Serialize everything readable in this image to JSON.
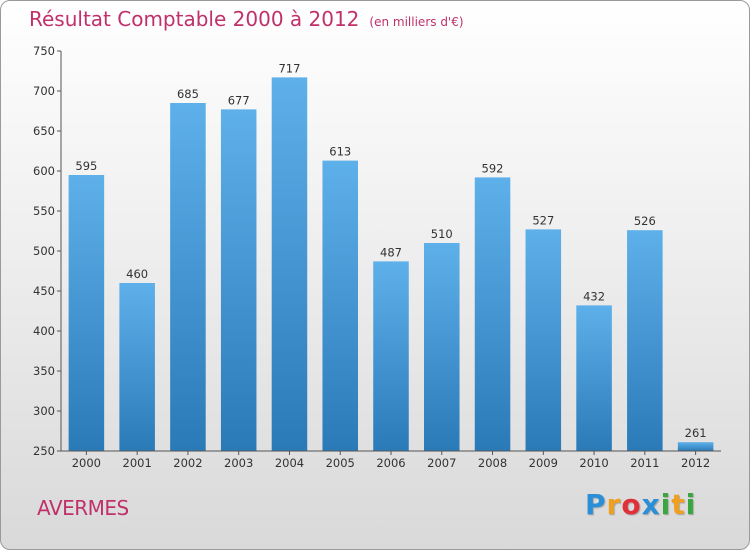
{
  "chart_data": {
    "type": "bar",
    "title": "Résultat Comptable 2000 à 2012",
    "subtitle": "(en milliers d'€)",
    "categories": [
      "2000",
      "2001",
      "2002",
      "2003",
      "2004",
      "2005",
      "2006",
      "2007",
      "2008",
      "2009",
      "2010",
      "2011",
      "2012"
    ],
    "values": [
      595,
      460,
      685,
      677,
      717,
      613,
      487,
      510,
      592,
      527,
      432,
      526,
      261
    ],
    "ylim": [
      250,
      750
    ],
    "yticks": [
      250,
      300,
      350,
      400,
      450,
      500,
      550,
      600,
      650,
      700,
      750
    ],
    "xlabel": "",
    "ylabel": "",
    "grid": false,
    "bar_color_top": "#5eb0ea",
    "bar_color_bottom": "#2a7ab8"
  },
  "location": "AVERMES",
  "brand": {
    "letters": [
      "P",
      "r",
      "o",
      "x",
      "i",
      "t",
      "i"
    ],
    "colors": [
      "#2a8fd6",
      "#f0a020",
      "#e0303a",
      "#2a8fd6",
      "#3aa640",
      "#f0a020",
      "#3aa640"
    ]
  },
  "colors": {
    "title": "#c0306a",
    "axis": "#555555"
  }
}
